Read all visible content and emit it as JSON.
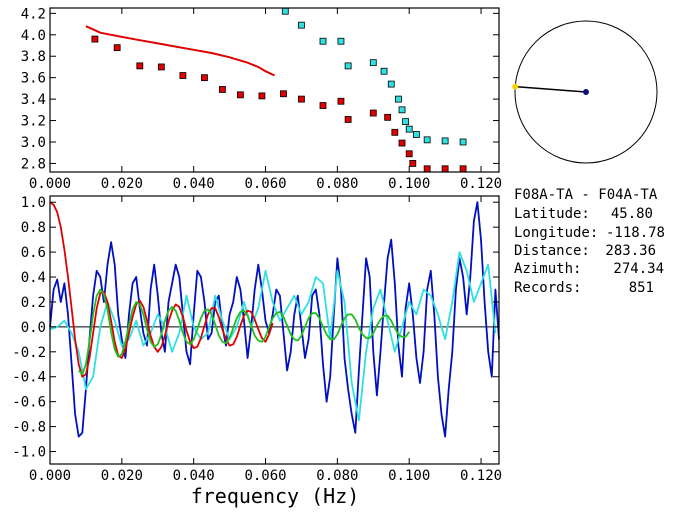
{
  "station_pair": "F08A-TA - F04A-TA",
  "info": [
    {
      "label": "Latitude:",
      "value": "45.80"
    },
    {
      "label": "Longitude:",
      "value": "-118.78"
    },
    {
      "label": "Distance:",
      "value": "283.36"
    },
    {
      "label": "Azimuth:",
      "value": "274.34"
    },
    {
      "label": "Records:",
      "value": "851"
    }
  ],
  "colors": {
    "red": "#e00000",
    "cyan": "#30e0e0",
    "blue": "#0010c0",
    "green": "#20c020",
    "marker_red": "#e00000",
    "marker_cyan": "#30e0e0",
    "azimuth_dot": "#101080",
    "azimuth_end": "#ffd000"
  },
  "chart_data": [
    {
      "type": "scatter",
      "title": "",
      "xlabel": "",
      "ylabel": "",
      "xlim": [
        0.0,
        0.125
      ],
      "ylim": [
        2.72,
        4.25
      ],
      "x_ticks": [
        "0.000",
        "0.020",
        "0.040",
        "0.060",
        "0.080",
        "0.100",
        "0.120"
      ],
      "y_ticks": [
        "2.8",
        "3.0",
        "3.2",
        "3.4",
        "3.6",
        "3.8",
        "4.0",
        "4.2"
      ],
      "series": [
        {
          "kind": "markers",
          "color": "red",
          "points": [
            [
              0.0125,
              3.96
            ],
            [
              0.0187,
              3.88
            ],
            [
              0.025,
              3.71
            ],
            [
              0.031,
              3.7
            ],
            [
              0.037,
              3.62
            ],
            [
              0.043,
              3.6
            ],
            [
              0.048,
              3.49
            ],
            [
              0.053,
              3.44
            ],
            [
              0.059,
              3.43
            ],
            [
              0.065,
              3.45
            ],
            [
              0.07,
              3.4
            ],
            [
              0.076,
              3.34
            ],
            [
              0.081,
              3.38
            ],
            [
              0.083,
              3.21
            ],
            [
              0.09,
              3.27
            ],
            [
              0.094,
              3.23
            ],
            [
              0.096,
              3.09
            ],
            [
              0.098,
              2.99
            ],
            [
              0.1,
              2.89
            ],
            [
              0.101,
              2.8
            ],
            [
              0.105,
              2.75
            ],
            [
              0.11,
              2.75
            ],
            [
              0.115,
              2.75
            ]
          ]
        },
        {
          "kind": "markers",
          "color": "cyan",
          "points": [
            [
              0.0655,
              4.22
            ],
            [
              0.07,
              4.09
            ],
            [
              0.076,
              3.94
            ],
            [
              0.081,
              3.94
            ],
            [
              0.083,
              3.71
            ],
            [
              0.09,
              3.74
            ],
            [
              0.093,
              3.66
            ],
            [
              0.095,
              3.54
            ],
            [
              0.097,
              3.4
            ],
            [
              0.098,
              3.3
            ],
            [
              0.099,
              3.19
            ],
            [
              0.1,
              3.12
            ],
            [
              0.102,
              3.07
            ],
            [
              0.105,
              3.02
            ],
            [
              0.11,
              3.01
            ],
            [
              0.115,
              3.0
            ]
          ]
        },
        {
          "kind": "line",
          "color": "red",
          "points": [
            [
              0.01,
              4.08
            ],
            [
              0.012,
              4.05
            ],
            [
              0.014,
              4.02
            ],
            [
              0.017,
              4.0
            ],
            [
              0.02,
              3.98
            ],
            [
              0.025,
              3.95
            ],
            [
              0.03,
              3.92
            ],
            [
              0.035,
              3.89
            ],
            [
              0.04,
              3.86
            ],
            [
              0.045,
              3.83
            ],
            [
              0.05,
              3.79
            ],
            [
              0.055,
              3.74
            ],
            [
              0.058,
              3.7
            ],
            [
              0.06,
              3.66
            ],
            [
              0.0625,
              3.62
            ]
          ]
        }
      ]
    },
    {
      "type": "line",
      "title": "",
      "xlabel": "frequency (Hz)",
      "ylabel": "",
      "xlim": [
        0.0,
        0.125
      ],
      "ylim": [
        -1.1,
        1.05
      ],
      "x_ticks": [
        "0.000",
        "0.020",
        "0.040",
        "0.060",
        "0.080",
        "0.100",
        "0.120"
      ],
      "y_ticks": [
        "-1.0",
        "-0.8",
        "-0.6",
        "-0.4",
        "-0.2",
        "0.0",
        "0.2",
        "0.4",
        "0.6",
        "0.8",
        "1.0"
      ],
      "series": [
        {
          "color": "blue",
          "x": [
            0.0,
            0.001,
            0.002,
            0.003,
            0.004,
            0.005,
            0.006,
            0.007,
            0.008,
            0.009,
            0.01,
            0.011,
            0.012,
            0.013,
            0.014,
            0.015,
            0.016,
            0.017,
            0.018,
            0.019,
            0.02,
            0.021,
            0.022,
            0.023,
            0.024,
            0.025,
            0.026,
            0.027,
            0.028,
            0.029,
            0.03,
            0.031,
            0.032,
            0.033,
            0.034,
            0.035,
            0.036,
            0.037,
            0.038,
            0.039,
            0.04,
            0.041,
            0.042,
            0.043,
            0.044,
            0.045,
            0.046,
            0.047,
            0.048,
            0.049,
            0.05,
            0.051,
            0.052,
            0.053,
            0.054,
            0.055,
            0.056,
            0.057,
            0.058,
            0.059,
            0.06,
            0.061,
            0.062,
            0.063,
            0.064,
            0.065,
            0.066,
            0.067,
            0.068,
            0.069,
            0.07,
            0.071,
            0.072,
            0.073,
            0.074,
            0.075,
            0.076,
            0.077,
            0.078,
            0.079,
            0.08,
            0.081,
            0.082,
            0.083,
            0.084,
            0.085,
            0.086,
            0.087,
            0.088,
            0.089,
            0.09,
            0.091,
            0.092,
            0.093,
            0.094,
            0.095,
            0.096,
            0.097,
            0.098,
            0.099,
            0.1,
            0.101,
            0.102,
            0.103,
            0.104,
            0.105,
            0.106,
            0.107,
            0.108,
            0.109,
            0.11,
            0.111,
            0.112,
            0.113,
            0.114,
            0.115,
            0.116,
            0.117,
            0.118,
            0.119,
            0.12,
            0.121,
            0.122,
            0.123,
            0.124,
            0.125
          ],
          "y": [
            0.0,
            0.3,
            0.38,
            0.2,
            0.35,
            0.1,
            -0.3,
            -0.7,
            -0.88,
            -0.85,
            -0.5,
            -0.1,
            0.25,
            0.45,
            0.4,
            0.2,
            0.5,
            0.68,
            0.5,
            0.1,
            -0.1,
            -0.25,
            0.1,
            0.35,
            0.4,
            0.15,
            -0.05,
            -0.15,
            0.3,
            0.5,
            0.25,
            -0.05,
            -0.2,
            0.2,
            0.35,
            0.5,
            0.4,
            0.1,
            -0.2,
            -0.3,
            0.1,
            0.45,
            0.4,
            0.2,
            -0.1,
            -0.05,
            0.2,
            0.25,
            0.0,
            -0.15,
            0.1,
            0.2,
            0.4,
            0.3,
            0.05,
            -0.25,
            0.0,
            0.3,
            0.5,
            0.3,
            0.05,
            -0.05,
            0.1,
            0.3,
            0.25,
            -0.05,
            -0.35,
            -0.2,
            0.1,
            0.25,
            0.0,
            -0.25,
            -0.1,
            0.25,
            0.3,
            0.1,
            -0.3,
            -0.6,
            -0.4,
            0.1,
            0.55,
            0.3,
            -0.25,
            -0.5,
            -0.7,
            -0.85,
            -0.35,
            0.1,
            0.55,
            0.4,
            -0.2,
            -0.55,
            -0.2,
            0.2,
            0.55,
            0.7,
            0.35,
            -0.15,
            -0.4,
            0.15,
            0.35,
            0.1,
            -0.25,
            -0.45,
            -0.2,
            0.3,
            0.45,
            0.1,
            -0.4,
            -0.7,
            -0.88,
            -0.5,
            -0.2,
            0.3,
            0.55,
            0.4,
            0.1,
            0.4,
            0.85,
            1.0,
            0.7,
            0.2,
            -0.2,
            -0.4,
            0.3,
            -0.1
          ]
        },
        {
          "color": "cyan",
          "x": [
            0.0,
            0.002,
            0.004,
            0.006,
            0.008,
            0.01,
            0.012,
            0.014,
            0.016,
            0.018,
            0.02,
            0.022,
            0.024,
            0.026,
            0.028,
            0.03,
            0.032,
            0.034,
            0.036,
            0.038,
            0.04,
            0.042,
            0.044,
            0.046,
            0.048,
            0.05,
            0.052,
            0.054,
            0.056,
            0.058,
            0.06,
            0.062,
            0.064,
            0.066,
            0.068,
            0.07,
            0.072,
            0.074,
            0.076,
            0.078,
            0.08,
            0.082,
            0.084,
            0.086,
            0.088,
            0.09,
            0.092,
            0.094,
            0.096,
            0.098,
            0.1,
            0.102,
            0.104,
            0.106,
            0.108,
            0.11,
            0.112,
            0.114,
            0.116,
            0.118,
            0.12,
            0.122,
            0.124
          ],
          "y": [
            -0.02,
            0.0,
            0.05,
            -0.05,
            -0.2,
            -0.5,
            -0.4,
            0.0,
            0.2,
            0.05,
            -0.15,
            -0.1,
            0.05,
            -0.15,
            -0.05,
            0.1,
            0.0,
            -0.2,
            -0.05,
            0.25,
            0.0,
            -0.1,
            -0.05,
            0.25,
            0.05,
            -0.1,
            0.0,
            0.2,
            0.0,
            0.15,
            0.45,
            0.2,
            0.05,
            0.15,
            0.25,
            0.1,
            0.2,
            0.4,
            0.35,
            -0.1,
            0.45,
            0.2,
            -0.45,
            -0.75,
            -0.2,
            0.15,
            0.3,
            0.05,
            -0.2,
            0.0,
            0.2,
            0.1,
            0.3,
            0.25,
            0.1,
            -0.1,
            0.2,
            0.6,
            0.45,
            0.2,
            0.35,
            0.5,
            -0.05
          ]
        },
        {
          "color": "red",
          "x": [
            0.0,
            0.001,
            0.002,
            0.003,
            0.004,
            0.005,
            0.006,
            0.007,
            0.008,
            0.009,
            0.01,
            0.011,
            0.012,
            0.013,
            0.014,
            0.015,
            0.016,
            0.017,
            0.018,
            0.019,
            0.02,
            0.021,
            0.022,
            0.023,
            0.024,
            0.025,
            0.026,
            0.027,
            0.028,
            0.029,
            0.03,
            0.031,
            0.032,
            0.033,
            0.034,
            0.035,
            0.036,
            0.037,
            0.038,
            0.039,
            0.04,
            0.041,
            0.042,
            0.043,
            0.044,
            0.045,
            0.046,
            0.047,
            0.048,
            0.049,
            0.05,
            0.051,
            0.052,
            0.053,
            0.054,
            0.055,
            0.056,
            0.057,
            0.058,
            0.059,
            0.06,
            0.061,
            0.062
          ],
          "y": [
            1.0,
            0.98,
            0.92,
            0.8,
            0.62,
            0.4,
            0.15,
            -0.1,
            -0.3,
            -0.4,
            -0.38,
            -0.25,
            -0.05,
            0.15,
            0.27,
            0.28,
            0.2,
            0.05,
            -0.12,
            -0.23,
            -0.25,
            -0.18,
            -0.05,
            0.08,
            0.18,
            0.21,
            0.16,
            0.05,
            -0.07,
            -0.16,
            -0.2,
            -0.16,
            -0.07,
            0.04,
            0.13,
            0.18,
            0.16,
            0.08,
            -0.03,
            -0.12,
            -0.17,
            -0.16,
            -0.09,
            0.01,
            0.1,
            0.15,
            0.15,
            0.08,
            -0.02,
            -0.1,
            -0.15,
            -0.14,
            -0.08,
            0.01,
            0.09,
            0.13,
            0.12,
            0.06,
            -0.02,
            -0.09,
            -0.12,
            -0.06,
            0.03
          ]
        },
        {
          "color": "green",
          "x": [
            0.008,
            0.009,
            0.01,
            0.011,
            0.012,
            0.013,
            0.014,
            0.015,
            0.016,
            0.017,
            0.018,
            0.019,
            0.02,
            0.021,
            0.022,
            0.023,
            0.024,
            0.025,
            0.026,
            0.027,
            0.028,
            0.029,
            0.03,
            0.031,
            0.032,
            0.033,
            0.034,
            0.035,
            0.036,
            0.037,
            0.038,
            0.039,
            0.04,
            0.041,
            0.042,
            0.043,
            0.044,
            0.045,
            0.046,
            0.047,
            0.048,
            0.049,
            0.05,
            0.051,
            0.052,
            0.053,
            0.054,
            0.055,
            0.056,
            0.057,
            0.058,
            0.059,
            0.06,
            0.061,
            0.062,
            0.063,
            0.064,
            0.065,
            0.066,
            0.067,
            0.068,
            0.069,
            0.07,
            0.071,
            0.072,
            0.073,
            0.074,
            0.075,
            0.076,
            0.077,
            0.078,
            0.079,
            0.08,
            0.081,
            0.082,
            0.083,
            0.084,
            0.085,
            0.086,
            0.087,
            0.088,
            0.089,
            0.09,
            0.091,
            0.092,
            0.093,
            0.094,
            0.095,
            0.096,
            0.097,
            0.098,
            0.099,
            0.1
          ],
          "y": [
            -0.35,
            -0.38,
            -0.3,
            -0.12,
            0.1,
            0.25,
            0.3,
            0.26,
            0.14,
            -0.04,
            -0.18,
            -0.24,
            -0.22,
            -0.12,
            0.02,
            0.14,
            0.2,
            0.18,
            0.1,
            -0.02,
            -0.12,
            -0.16,
            -0.14,
            -0.06,
            0.05,
            0.13,
            0.16,
            0.13,
            0.05,
            -0.05,
            -0.12,
            -0.14,
            -0.1,
            -0.02,
            0.07,
            0.13,
            0.14,
            0.1,
            0.02,
            -0.07,
            -0.12,
            -0.13,
            -0.09,
            -0.01,
            0.07,
            0.12,
            0.13,
            0.09,
            0.01,
            -0.07,
            -0.11,
            -0.12,
            -0.08,
            0.0,
            0.07,
            0.11,
            0.12,
            0.08,
            0.01,
            -0.06,
            -0.1,
            -0.11,
            -0.07,
            0.0,
            0.07,
            0.11,
            0.11,
            0.07,
            0.0,
            -0.06,
            -0.1,
            -0.1,
            -0.06,
            0.01,
            0.07,
            0.1,
            0.1,
            0.06,
            -0.01,
            -0.06,
            -0.09,
            -0.09,
            -0.05,
            0.01,
            0.06,
            0.09,
            0.09,
            0.05,
            -0.01,
            -0.06,
            -0.08,
            -0.08,
            -0.04
          ]
        }
      ]
    }
  ],
  "azimuth_deg": 274.34
}
